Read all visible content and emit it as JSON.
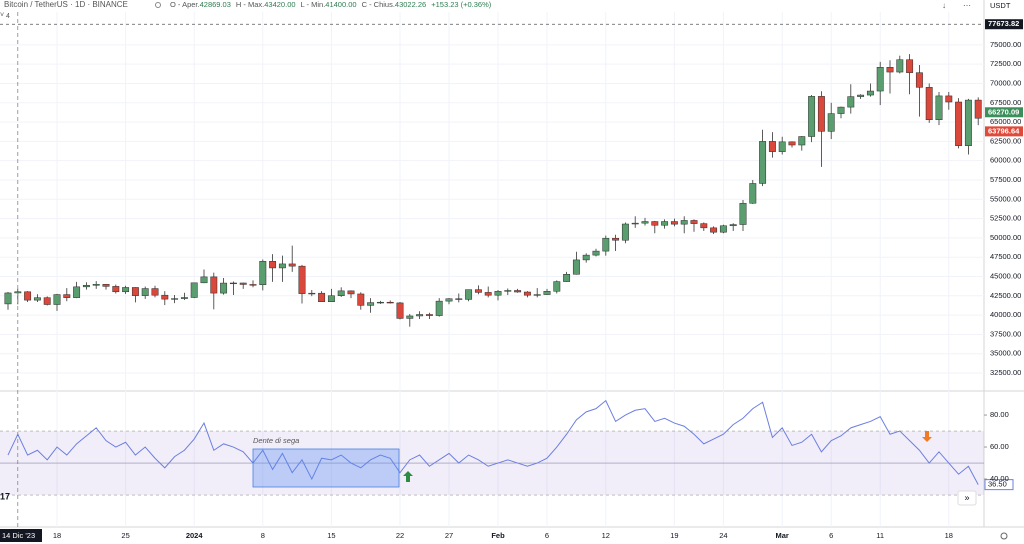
{
  "chart_data": [
    {
      "type": "candlestick",
      "title": "Bitcoin / TetherUS · 1D · BINANCE",
      "legend": [
        {
          "key": "O - Aper.",
          "value": "42869.03"
        },
        {
          "key": "H - Max.",
          "value": "43420.00"
        },
        {
          "key": "L - Min.",
          "value": "41400.00"
        },
        {
          "key": "C - Chius.",
          "value": "43022.26"
        }
      ],
      "change": "+153.23 (+0.36%)",
      "categories": [
        null,
        null,
        null,
        null,
        null,
        "18",
        null,
        null,
        null,
        null,
        null,
        null,
        "25",
        null,
        null,
        null,
        null,
        null,
        null,
        "2024",
        null,
        null,
        null,
        null,
        null,
        null,
        "8",
        null,
        null,
        null,
        null,
        null,
        null,
        "15",
        null,
        null,
        null,
        null,
        null,
        null,
        "22",
        null,
        null,
        null,
        null,
        "27",
        null,
        null,
        null,
        null,
        "Feb",
        null,
        null,
        null,
        null,
        "6",
        null,
        null,
        null,
        null,
        null,
        "12",
        null,
        null,
        null,
        null,
        null,
        null,
        "19",
        null,
        null,
        null,
        null,
        "24",
        null,
        null,
        null,
        null,
        null,
        "Mar",
        null,
        null,
        null,
        null,
        "6",
        null,
        null,
        null,
        null,
        "11",
        null,
        null,
        null,
        null,
        null,
        null,
        "18",
        null,
        null,
        null
      ],
      "open": [
        41450,
        42869.03,
        43020,
        41940,
        42260,
        41370,
        42660,
        42260,
        43660,
        43860,
        43990,
        43720,
        43020,
        43580,
        42520,
        43440,
        42580,
        42070,
        42140,
        42280,
        44180,
        44950,
        42850,
        44150,
        44160,
        43970,
        43930,
        46970,
        46110,
        46630,
        46340,
        42780,
        42840,
        41730,
        42510,
        43140,
        42740,
        41260,
        41620,
        41670,
        41580,
        39570,
        39890,
        40080,
        39940,
        41810,
        42120,
        42030,
        43300,
        42940,
        42580,
        43080,
        43190,
        42990,
        42580,
        42660,
        43090,
        44340,
        45290,
        47150,
        47770,
        48290,
        49960,
        49700,
        51800,
        51910,
        52120,
        51640,
        52120,
        51780,
        52260,
        51850,
        51300,
        50740,
        51570,
        51730,
        54490,
        57050,
        62500,
        61170,
        62440,
        62030,
        63130,
        68330,
        63800,
        66100,
        66940,
        68300,
        68500,
        69020,
        72100,
        71480,
        73080,
        71400,
        69500,
        65300,
        68390,
        67600,
        61940,
        67850
      ],
      "high": [
        43000,
        43420,
        43100,
        42700,
        42420,
        42750,
        43500,
        44300,
        44250,
        44400,
        44000,
        43950,
        43800,
        43600,
        43700,
        43800,
        43100,
        42600,
        42900,
        44200,
        45900,
        45500,
        44800,
        44350,
        44200,
        44500,
        47200,
        47900,
        47700,
        49000,
        46500,
        43250,
        43100,
        43400,
        43600,
        43200,
        42950,
        42200,
        41850,
        41900,
        41700,
        40150,
        40500,
        40300,
        42200,
        42200,
        42800,
        43300,
        43850,
        43700,
        43250,
        43450,
        43400,
        43100,
        43500,
        43400,
        44500,
        45600,
        48200,
        48000,
        48600,
        50300,
        50400,
        52000,
        52800,
        52600,
        52200,
        52400,
        52500,
        52800,
        52400,
        52000,
        51500,
        51700,
        51900,
        54900,
        57500,
        64000,
        63700,
        63100,
        62500,
        63200,
        68500,
        69000,
        67500,
        67000,
        69900,
        68600,
        70000,
        72800,
        73000,
        73600,
        73800,
        72400,
        70000,
        68900,
        68900,
        68100,
        68000,
        68200
      ],
      "low": [
        40700,
        41400,
        41700,
        41700,
        41250,
        40550,
        41800,
        42200,
        43300,
        43400,
        43300,
        42800,
        42750,
        41650,
        42100,
        42300,
        41300,
        41550,
        41950,
        42200,
        44150,
        40750,
        42650,
        42600,
        43400,
        43600,
        43200,
        44300,
        44300,
        45600,
        41500,
        42450,
        41700,
        41700,
        42350,
        42200,
        40700,
        40300,
        41450,
        41500,
        39450,
        38500,
        39500,
        39500,
        39800,
        41400,
        41650,
        41800,
        42700,
        42300,
        41900,
        42600,
        42900,
        42300,
        42300,
        42600,
        42800,
        44300,
        45250,
        46800,
        47600,
        47700,
        48300,
        49300,
        51300,
        51600,
        50600,
        51200,
        51500,
        50600,
        50800,
        50900,
        50500,
        50600,
        50900,
        50900,
        54400,
        56700,
        60400,
        60800,
        61700,
        61300,
        62400,
        59200,
        62800,
        65500,
        66100,
        68000,
        68300,
        67200,
        68700,
        71300,
        68600,
        65700,
        64900,
        64600,
        66600,
        61600,
        60800,
        64600
      ],
      "close": [
        42870,
        43022.26,
        41940,
        42260,
        41370,
        42660,
        42260,
        43660,
        43860,
        43990,
        43720,
        43020,
        43580,
        42520,
        43440,
        42580,
        42070,
        42140,
        42280,
        44180,
        44950,
        42850,
        44150,
        44160,
        43970,
        43930,
        46970,
        46110,
        46630,
        46340,
        42780,
        42840,
        41730,
        42510,
        43140,
        42740,
        41260,
        41620,
        41670,
        41580,
        39570,
        39890,
        40080,
        39940,
        41810,
        42120,
        42030,
        43300,
        42940,
        42580,
        43080,
        43190,
        42990,
        42580,
        42660,
        43090,
        44340,
        45290,
        47150,
        47770,
        48290,
        49960,
        49700,
        51800,
        51910,
        52120,
        51640,
        52120,
        51780,
        52260,
        51850,
        51300,
        50740,
        51570,
        51730,
        54490,
        57050,
        62500,
        61170,
        62440,
        62030,
        63130,
        68330,
        63800,
        66100,
        66940,
        68300,
        68500,
        69020,
        72100,
        71480,
        73080,
        71400,
        69500,
        65300,
        68390,
        67600,
        61940,
        67850,
        65500
      ],
      "up_color": "#5a9e6f",
      "down_color": "#d9483b",
      "ylim": [
        30300,
        78480
      ],
      "yticks": [
        {
          "value": 32500,
          "label": "32500.00"
        },
        {
          "value": 35000,
          "label": "35000.00"
        },
        {
          "value": 37500,
          "label": "37500.00"
        },
        {
          "value": 40000,
          "label": "40000.00"
        },
        {
          "value": 42500,
          "label": "42500.00"
        },
        {
          "value": 45000,
          "label": "45000.00"
        },
        {
          "value": 47500,
          "label": "47500.00"
        },
        {
          "value": 50000,
          "label": "50000.00"
        },
        {
          "value": 52500,
          "label": "52500.00"
        },
        {
          "value": 55000,
          "label": "55000.00"
        },
        {
          "value": 57500,
          "label": "57500.00"
        },
        {
          "value": 60000,
          "label": "60000.00"
        },
        {
          "value": 62500,
          "label": "62500.00"
        },
        {
          "value": 65000,
          "label": "65000.00"
        },
        {
          "value": 67500,
          "label": "67500.00"
        },
        {
          "value": 70000,
          "label": "70000.00"
        },
        {
          "value": 72500,
          "label": "72500.00"
        },
        {
          "value": 75000,
          "label": "75000.00"
        }
      ],
      "price_labels": [
        {
          "value": 77673.82,
          "label": "77673.82",
          "color": "#131722"
        },
        {
          "value": 66270.09,
          "label": "66270.09",
          "color": "#3c8f5a"
        },
        {
          "value": 63796.64,
          "label": "63796.64",
          "color": "#e04a3a"
        }
      ],
      "grid": true,
      "crosshair_date": "14 Dic '23"
    },
    {
      "type": "line",
      "values": [
        55,
        68,
        55,
        58,
        52,
        60,
        55,
        62,
        67,
        72,
        64,
        60,
        63,
        55,
        60,
        53,
        47,
        54,
        58,
        65,
        75,
        58,
        62,
        60,
        57,
        50,
        58,
        46,
        56,
        44,
        52,
        40,
        53,
        52,
        55,
        50,
        47,
        52,
        55,
        53,
        44,
        52,
        55,
        48,
        52,
        56,
        50,
        55,
        52,
        48,
        50,
        52,
        50,
        48,
        50,
        53,
        60,
        68,
        77,
        82,
        84,
        89,
        76,
        80,
        83,
        84,
        76,
        78,
        75,
        73,
        68,
        62,
        65,
        68,
        74,
        78,
        84,
        88,
        66,
        72,
        61,
        63,
        68,
        57,
        64,
        67,
        72,
        74,
        76,
        79,
        68,
        70,
        64,
        58,
        50,
        57,
        50,
        43,
        48,
        36.5
      ],
      "color": "#6b7fe0",
      "ylim": [
        14.4,
        94.4
      ],
      "yticks": [
        {
          "value": 80,
          "label": "80.00"
        },
        {
          "value": 60,
          "label": "60.00"
        },
        {
          "value": 40,
          "label": "40.00"
        }
      ],
      "levels": [
        70,
        50,
        30
      ],
      "last_label": "36.50",
      "annotation": "Dente di sega"
    }
  ],
  "ui": {
    "currency": "USDT",
    "collapsed_count": "4",
    "left_clipped": "17",
    "scroll_button": "»"
  }
}
